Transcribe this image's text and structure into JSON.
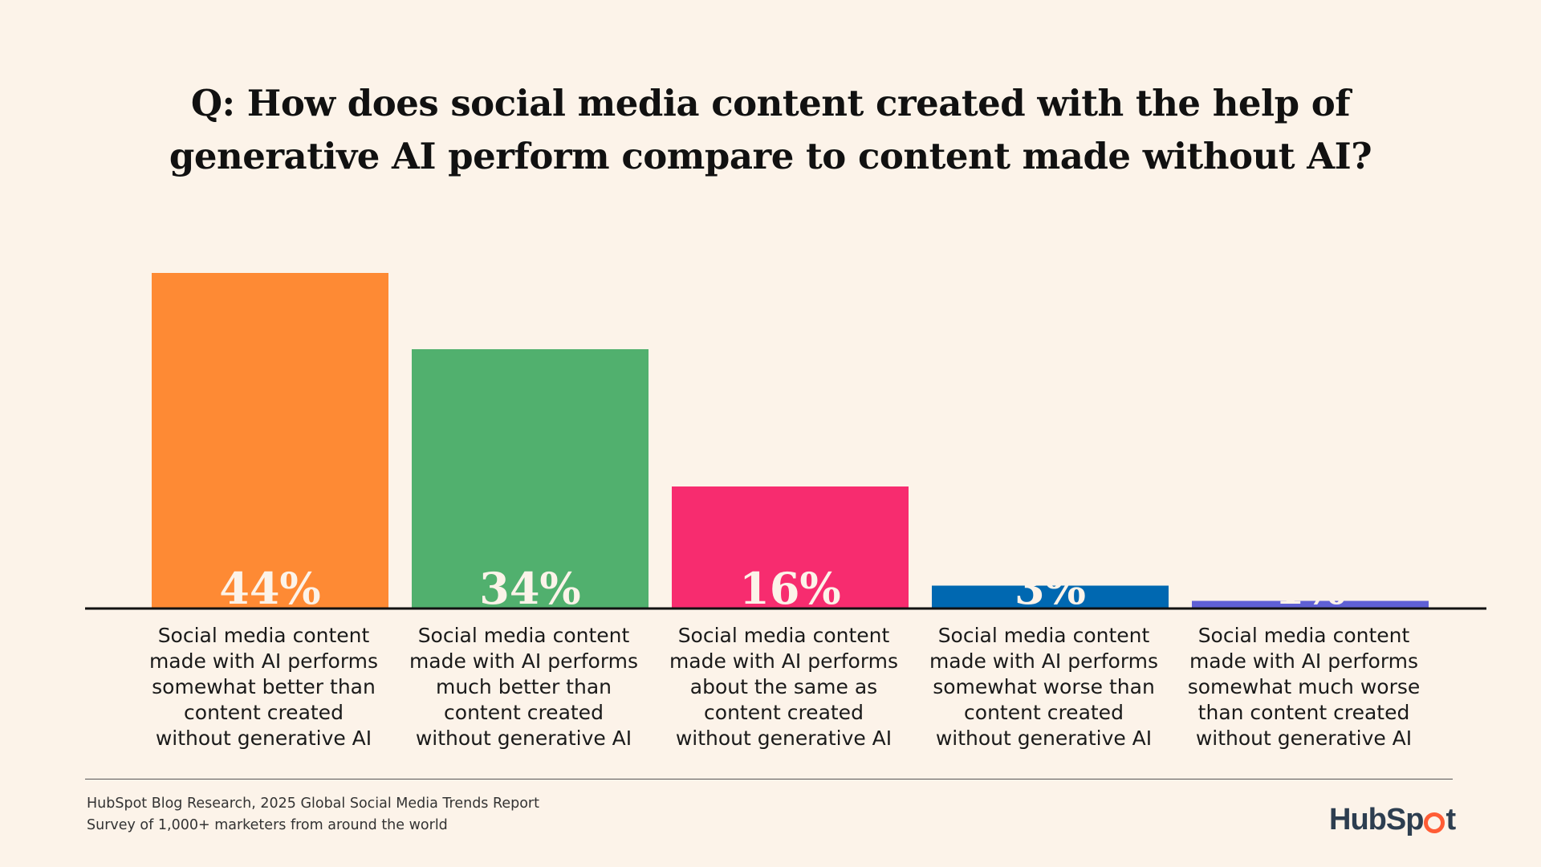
{
  "header": {
    "title_line1": "Q: How does social media content created with the help of",
    "title_line2": "generative AI perform compare to content made without AI?"
  },
  "chart_data": {
    "type": "bar",
    "title": "Q: How does social media content created with the help of generative AI perform compare to content made without AI?",
    "categories": [
      "Social media content made with AI performs somewhat better than content created without generative AI",
      "Social media content made with AI performs much better than content created without generative AI",
      "Social media content made with AI performs about the same as content created without generative AI",
      "Social media content made with AI performs somewhat worse than content created without generative AI",
      "Social media content made with AI performs somewhat much worse than content created without generative AI"
    ],
    "category_lines": [
      [
        "Social media content",
        "made with AI performs",
        "somewhat better than",
        "content created",
        "without generative AI"
      ],
      [
        "Social media content",
        "made with AI performs",
        "much better than",
        "content created",
        "without generative AI"
      ],
      [
        "Social media content",
        "made with AI performs",
        "about the same as",
        "content created",
        "without generative AI"
      ],
      [
        "Social media content",
        "made with AI performs",
        "somewhat worse than",
        "content created",
        "without generative AI"
      ],
      [
        "Social media content",
        "made with AI performs",
        "somewhat much worse",
        "than content created",
        "without generative AI"
      ]
    ],
    "values": [
      44,
      34,
      16,
      3,
      1
    ],
    "value_labels": [
      "44%",
      "34%",
      "16%",
      "3%",
      "1%"
    ],
    "colors": [
      "#fe8a34",
      "#51b06e",
      "#f72c6f",
      "#0068b1",
      "#5f60d5"
    ],
    "xlabel": "",
    "ylabel": "",
    "ylim": [
      0,
      44
    ],
    "grid": false,
    "legend": "none"
  },
  "footer": {
    "source_line1": "HubSpot Blog Research, 2025 Global Social Media Trends Report",
    "source_line2": "Survey of 1,000+ marketers from around the world",
    "logo_text_left": "HubSp",
    "logo_text_right": "t"
  }
}
